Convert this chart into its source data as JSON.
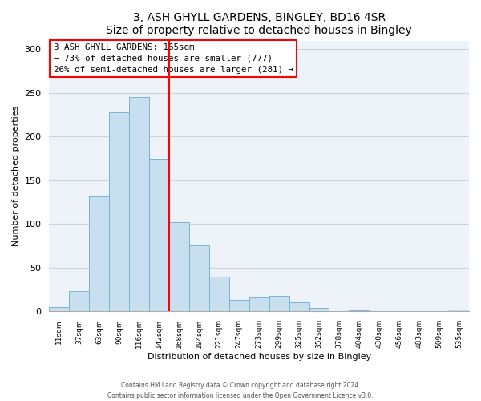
{
  "title": "3, ASH GHYLL GARDENS, BINGLEY, BD16 4SR",
  "subtitle": "Size of property relative to detached houses in Bingley",
  "xlabel": "Distribution of detached houses by size in Bingley",
  "ylabel": "Number of detached properties",
  "bar_labels": [
    "11sqm",
    "37sqm",
    "63sqm",
    "90sqm",
    "116sqm",
    "142sqm",
    "168sqm",
    "194sqm",
    "221sqm",
    "247sqm",
    "273sqm",
    "299sqm",
    "325sqm",
    "352sqm",
    "378sqm",
    "404sqm",
    "430sqm",
    "456sqm",
    "483sqm",
    "509sqm",
    "535sqm"
  ],
  "bar_values": [
    5,
    23,
    132,
    228,
    245,
    175,
    102,
    76,
    40,
    13,
    17,
    18,
    10,
    4,
    0,
    1,
    0,
    0,
    0,
    0,
    2
  ],
  "bar_color": "#c8dff0",
  "bar_edge_color": "#7ab3d4",
  "vline_x": 5.5,
  "vline_color": "red",
  "annotation_title": "3 ASH GHYLL GARDENS: 165sqm",
  "annotation_line1": "← 73% of detached houses are smaller (777)",
  "annotation_line2": "26% of semi-detached houses are larger (281) →",
  "annotation_box_color": "white",
  "annotation_box_edge": "red",
  "ylim": [
    0,
    310
  ],
  "yticks": [
    0,
    50,
    100,
    150,
    200,
    250,
    300
  ],
  "footer_line1": "Contains HM Land Registry data © Crown copyright and database right 2024.",
  "footer_line2": "Contains public sector information licensed under the Open Government Licence v3.0.",
  "bg_color": "white",
  "plot_bg_color": "#eef3f9",
  "grid_color": "#c8d4e0"
}
